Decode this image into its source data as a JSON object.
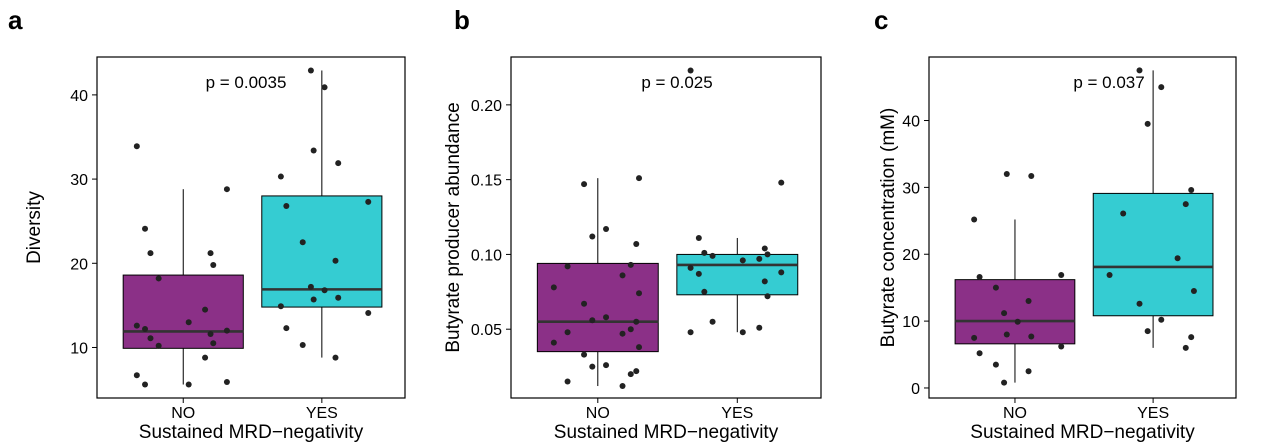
{
  "colors": {
    "no_box": "#8B3087",
    "yes_box": "#35CCD2",
    "point": "#222222"
  },
  "chart_data": [
    {
      "type": "boxplot",
      "panel_label": "a",
      "annotation": "p = 0.0035",
      "ylabel": "Diversity",
      "xlabel": "Sustained MRD−negativity",
      "categories": [
        "NO",
        "YES"
      ],
      "ylim": [
        4,
        44.5
      ],
      "yticks": [
        10,
        20,
        30,
        40
      ],
      "boxes": [
        {
          "category": "NO",
          "min": 5.6,
          "q1": 9.9,
          "median": 11.9,
          "q3": 18.6,
          "max": 28.8
        },
        {
          "category": "YES",
          "min": 8.8,
          "q1": 14.8,
          "median": 16.9,
          "q3": 28.0,
          "max": 42.9
        }
      ],
      "points": [
        [
          5.6,
          5.9,
          6.7,
          5.6,
          8.8,
          10.2,
          10.5,
          11.1,
          11.6,
          12.2,
          12.0,
          12.6,
          13.0,
          14.5,
          18.2,
          19.8,
          21.2,
          21.2,
          24.1,
          28.8,
          33.9
        ],
        [
          8.8,
          10.3,
          12.3,
          14.1,
          14.9,
          15.9,
          15.7,
          16.8,
          17.2,
          20.3,
          22.5,
          26.8,
          27.3,
          30.3,
          31.9,
          33.4,
          40.9,
          42.9
        ]
      ]
    },
    {
      "type": "boxplot",
      "panel_label": "b",
      "annotation": "p = 0.025",
      "ylabel": "Butyrate producer abundance",
      "xlabel": "Sustained MRD−negativity",
      "categories": [
        "NO",
        "YES"
      ],
      "ylim": [
        0.004,
        0.232
      ],
      "yticks": [
        0.05,
        0.1,
        0.15,
        0.2
      ],
      "ytick_labels": [
        "0.05",
        "0.10",
        "0.15",
        "0.20"
      ],
      "boxes": [
        {
          "category": "NO",
          "min": 0.012,
          "q1": 0.035,
          "median": 0.055,
          "q3": 0.094,
          "max": 0.151
        },
        {
          "category": "YES",
          "min": 0.048,
          "q1": 0.073,
          "median": 0.093,
          "q3": 0.1,
          "max": 0.111
        }
      ],
      "points": [
        [
          0.012,
          0.015,
          0.02,
          0.022,
          0.025,
          0.026,
          0.033,
          0.038,
          0.041,
          0.047,
          0.048,
          0.05,
          0.055,
          0.056,
          0.058,
          0.067,
          0.074,
          0.078,
          0.086,
          0.092,
          0.093,
          0.107,
          0.112,
          0.117,
          0.147,
          0.151
        ],
        [
          0.048,
          0.048,
          0.051,
          0.055,
          0.072,
          0.075,
          0.082,
          0.087,
          0.088,
          0.091,
          0.096,
          0.097,
          0.099,
          0.1,
          0.101,
          0.104,
          0.111,
          0.148,
          0.223
        ]
      ]
    },
    {
      "type": "boxplot",
      "panel_label": "c",
      "annotation": "p = 0.037",
      "ylabel": "Butyrate concentration (mM)",
      "xlabel": "Sustained MRD−negativity",
      "categories": [
        "NO",
        "YES"
      ],
      "ylim": [
        -1.5,
        49.5
      ],
      "yticks": [
        0,
        10,
        20,
        30,
        40
      ],
      "boxes": [
        {
          "category": "NO",
          "min": 0.8,
          "q1": 6.6,
          "median": 10.0,
          "q3": 16.2,
          "max": 25.2
        },
        {
          "category": "YES",
          "min": 6.0,
          "q1": 10.8,
          "median": 18.1,
          "q3": 29.1,
          "max": 47.5
        }
      ],
      "points": [
        [
          0.8,
          2.5,
          3.5,
          5.2,
          6.2,
          7.5,
          7.7,
          8.0,
          9.9,
          11.2,
          13.0,
          15.0,
          16.6,
          16.9,
          25.2,
          31.7,
          32.0
        ],
        [
          6.0,
          7.6,
          8.5,
          10.2,
          12.6,
          14.5,
          16.9,
          19.4,
          26.1,
          27.5,
          29.6,
          39.5,
          45.0,
          47.5
        ]
      ]
    }
  ]
}
